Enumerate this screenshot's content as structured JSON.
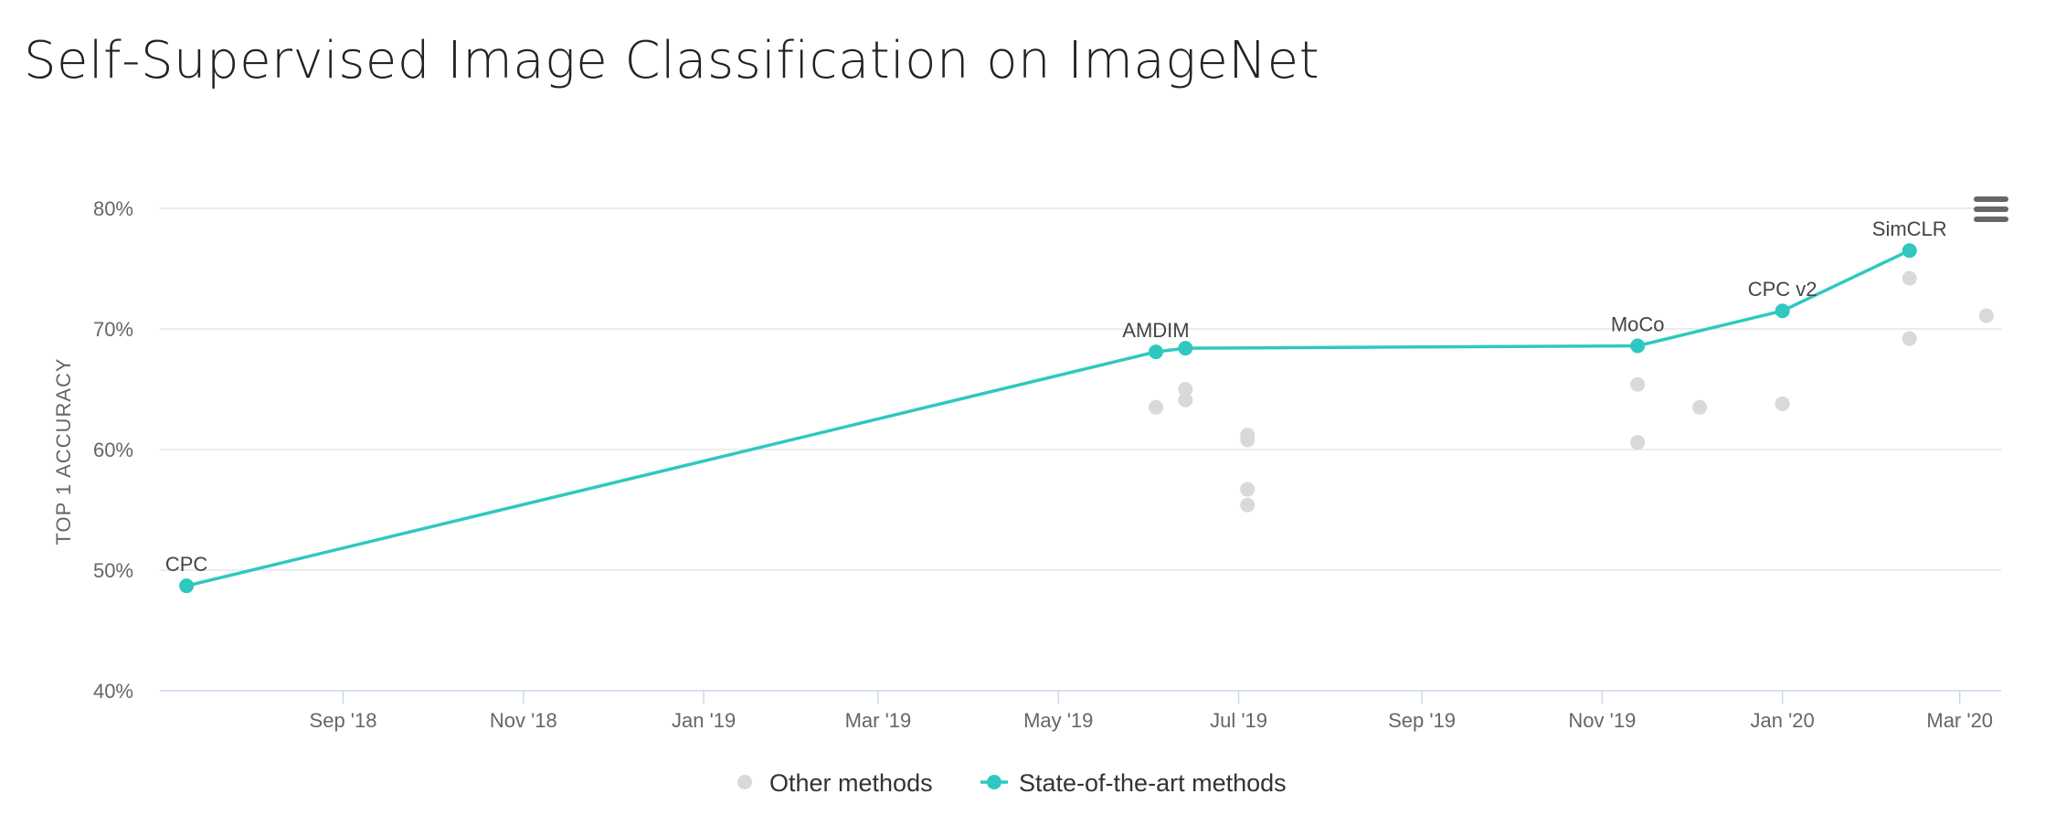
{
  "title": "Self-Supervised Image Classification on ImageNet",
  "menu_icon": "hamburger-menu-icon",
  "colors": {
    "sota": "#2ec8c0",
    "other": "#d9d9d9",
    "grid": "#e6e6e6",
    "axis_text": "#666666"
  },
  "chart_data": {
    "type": "scatter",
    "x_type": "date",
    "xlim": [
      "2018-07-01",
      "2020-03-15"
    ],
    "ylim": [
      40,
      80
    ],
    "ylabel": "TOP 1 ACCURACY",
    "y_ticks": [
      "40%",
      "50%",
      "60%",
      "70%",
      "80%"
    ],
    "y_tick_values": [
      40,
      50,
      60,
      70,
      80
    ],
    "x_ticks": [
      "Sep '18",
      "Nov '18",
      "Jan '19",
      "Mar '19",
      "May '19",
      "Jul '19",
      "Sep '19",
      "Nov '19",
      "Jan '20",
      "Mar '20"
    ],
    "x_tick_dates": [
      "2018-09-01",
      "2018-11-01",
      "2019-01-01",
      "2019-03-01",
      "2019-05-01",
      "2019-07-01",
      "2019-09-01",
      "2019-11-01",
      "2020-01-01",
      "2020-03-01"
    ],
    "grid": true,
    "legend_position": "bottom-center",
    "legend": [
      "Other methods",
      "State-of-the-art methods"
    ],
    "series": [
      {
        "name": "Other methods",
        "points": [
          {
            "x": "2019-06-03",
            "y": 63.5
          },
          {
            "x": "2019-06-13",
            "y": 65.0
          },
          {
            "x": "2019-06-13",
            "y": 64.1
          },
          {
            "x": "2019-07-04",
            "y": 61.2
          },
          {
            "x": "2019-07-04",
            "y": 60.8
          },
          {
            "x": "2019-07-04",
            "y": 56.7
          },
          {
            "x": "2019-07-04",
            "y": 55.4
          },
          {
            "x": "2019-11-13",
            "y": 65.4
          },
          {
            "x": "2019-11-13",
            "y": 60.6
          },
          {
            "x": "2019-12-04",
            "y": 63.5
          },
          {
            "x": "2020-01-01",
            "y": 63.8
          },
          {
            "x": "2020-02-13",
            "y": 74.2
          },
          {
            "x": "2020-02-13",
            "y": 69.2
          },
          {
            "x": "2020-03-10",
            "y": 71.1
          }
        ]
      },
      {
        "name": "State-of-the-art methods",
        "points": [
          {
            "x": "2018-07-10",
            "y": 48.7,
            "label": "CPC"
          },
          {
            "x": "2019-06-03",
            "y": 68.1,
            "label": "AMDIM"
          },
          {
            "x": "2019-06-13",
            "y": 68.4,
            "label": ""
          },
          {
            "x": "2019-11-13",
            "y": 68.6,
            "label": "MoCo"
          },
          {
            "x": "2020-01-01",
            "y": 71.5,
            "label": "CPC v2"
          },
          {
            "x": "2020-02-13",
            "y": 76.5,
            "label": "SimCLR"
          }
        ]
      }
    ]
  }
}
